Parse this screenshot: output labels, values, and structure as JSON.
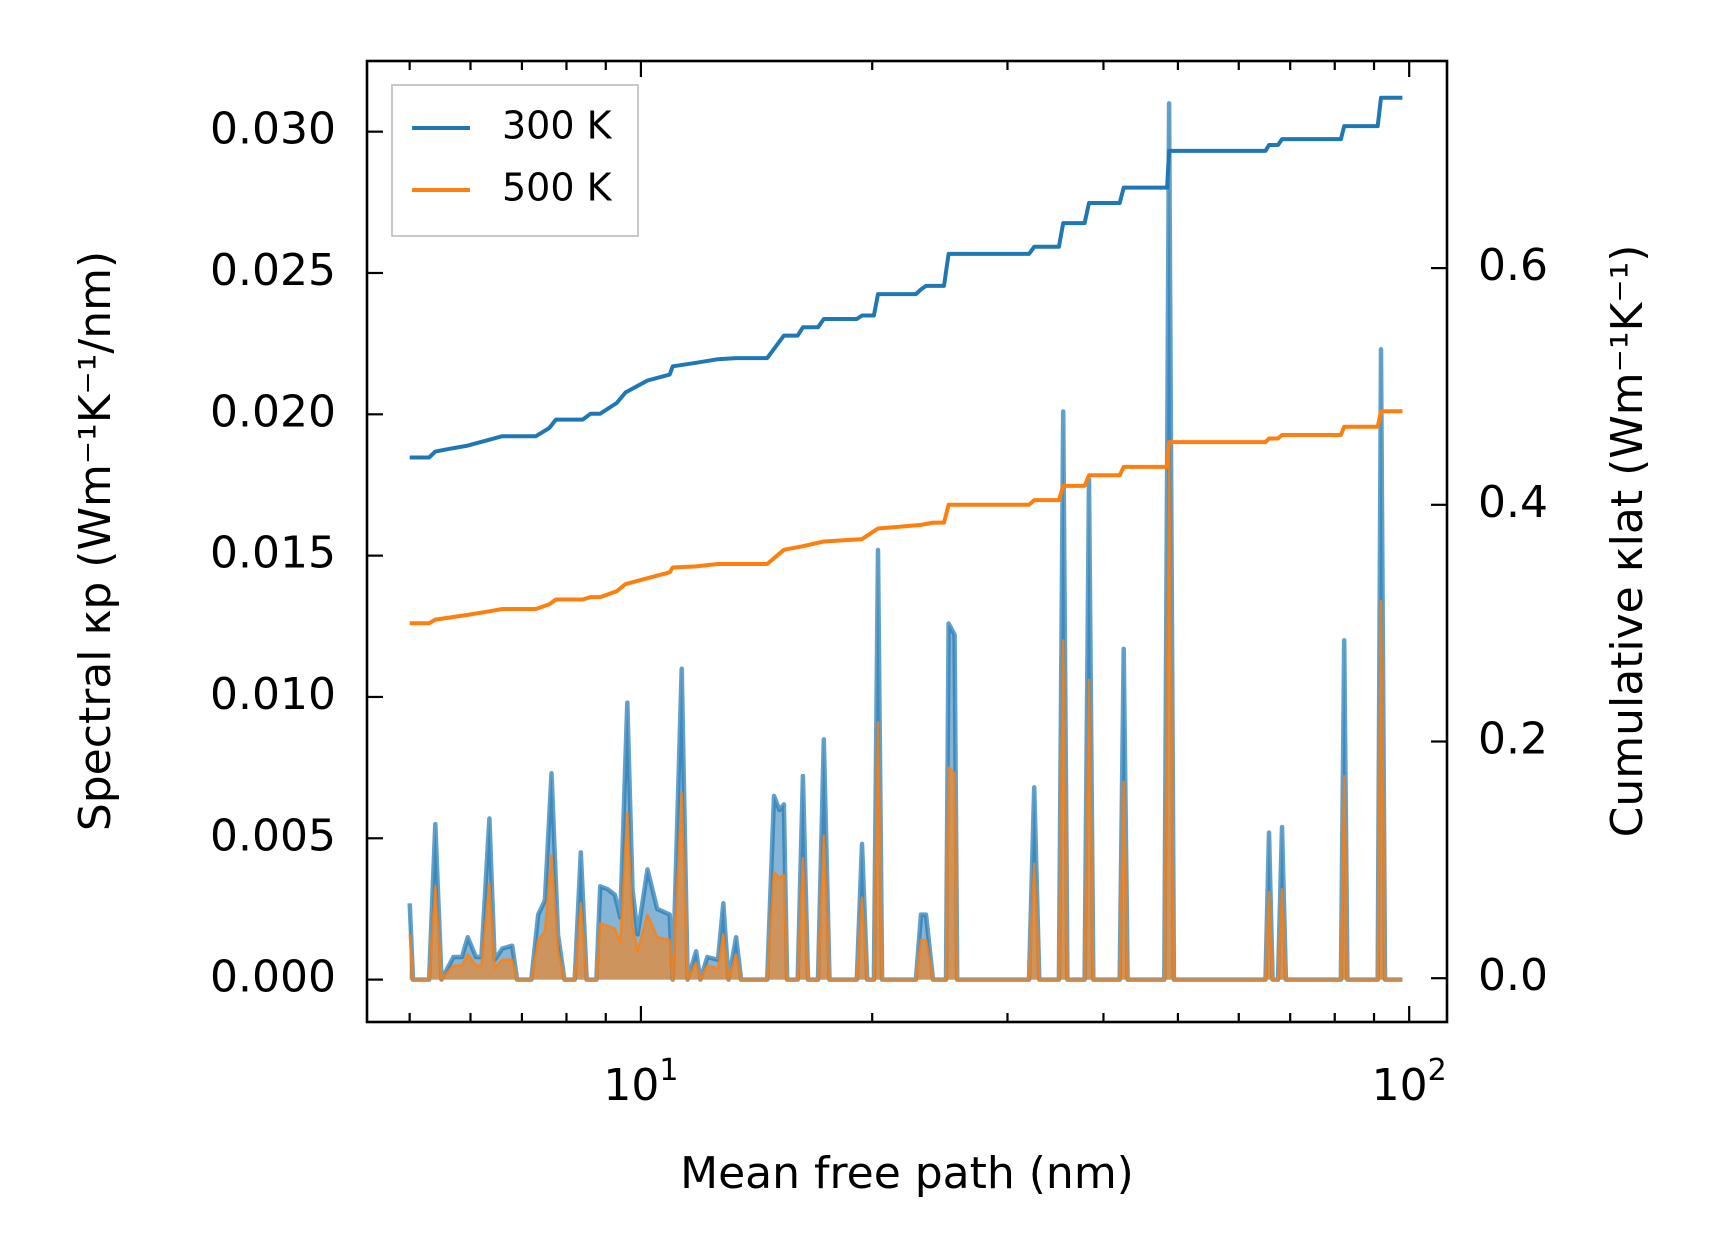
{
  "chart_data": {
    "type": "line",
    "xlabel": "Mean free path (nm)",
    "ylabel_left": "Spectral κp (Wm⁻¹K⁻¹/nm)",
    "ylabel_right": "Cumulative κlat (Wm⁻¹K⁻¹)",
    "x_scale": "log",
    "xlim": [
      4.4,
      112
    ],
    "ylim_left": [
      -0.0015,
      0.0325
    ],
    "ylim_right": [
      -0.037,
      0.775
    ],
    "x_ticks": [
      {
        "value": 10,
        "label": "10¹"
      },
      {
        "value": 100,
        "label": "10²"
      }
    ],
    "y_left_ticks": [
      {
        "value": 0.0,
        "label": "0.000"
      },
      {
        "value": 0.005,
        "label": "0.005"
      },
      {
        "value": 0.01,
        "label": "0.010"
      },
      {
        "value": 0.015,
        "label": "0.015"
      },
      {
        "value": 0.02,
        "label": "0.020"
      },
      {
        "value": 0.025,
        "label": "0.025"
      },
      {
        "value": 0.03,
        "label": "0.030"
      }
    ],
    "y_right_ticks": [
      {
        "value": 0.0,
        "label": "0.0"
      },
      {
        "value": 0.2,
        "label": "0.2"
      },
      {
        "value": 0.4,
        "label": "0.4"
      },
      {
        "value": 0.6,
        "label": "0.6"
      }
    ],
    "legend": {
      "position": "upper-left",
      "entries": [
        {
          "label": "300 K",
          "color": "#1f77b4"
        },
        {
          "label": "500 K",
          "color": "#ff7f0e"
        }
      ]
    },
    "spectral_300K": [
      [
        5.0,
        0.0027
      ],
      [
        5.05,
        0
      ],
      [
        5.3,
        0
      ],
      [
        5.4,
        0.0055
      ],
      [
        5.5,
        0
      ],
      [
        5.7,
        0.0008
      ],
      [
        5.85,
        0.0008
      ],
      [
        5.95,
        0.0015
      ],
      [
        6.1,
        0.0008
      ],
      [
        6.2,
        0.0008
      ],
      [
        6.35,
        0.0057
      ],
      [
        6.45,
        0.0007
      ],
      [
        6.6,
        0.0011
      ],
      [
        6.8,
        0.0012
      ],
      [
        6.9,
        0
      ],
      [
        7.2,
        0
      ],
      [
        7.35,
        0.0023
      ],
      [
        7.5,
        0.0028
      ],
      [
        7.65,
        0.0073
      ],
      [
        7.8,
        0.0016
      ],
      [
        7.95,
        0
      ],
      [
        8.2,
        0
      ],
      [
        8.35,
        0.0045
      ],
      [
        8.5,
        0
      ],
      [
        8.75,
        0
      ],
      [
        8.85,
        0.0033
      ],
      [
        9.05,
        0.0032
      ],
      [
        9.25,
        0.003
      ],
      [
        9.4,
        0.0022
      ],
      [
        9.6,
        0.0098
      ],
      [
        9.75,
        0.0032
      ],
      [
        9.9,
        0.0016
      ],
      [
        10.2,
        0.0039
      ],
      [
        10.5,
        0.0025
      ],
      [
        10.9,
        0.0023
      ],
      [
        11.0,
        0
      ],
      [
        11.3,
        0.011
      ],
      [
        11.5,
        0
      ],
      [
        11.8,
        0.001
      ],
      [
        11.95,
        0
      ],
      [
        12.2,
        0.0008
      ],
      [
        12.6,
        0.0007
      ],
      [
        12.8,
        0.0027
      ],
      [
        13.0,
        0
      ],
      [
        13.3,
        0.0015
      ],
      [
        13.5,
        0
      ],
      [
        14.0,
        0
      ],
      [
        14.6,
        0
      ],
      [
        14.9,
        0.0065
      ],
      [
        15.15,
        0.006
      ],
      [
        15.35,
        0.0062
      ],
      [
        15.5,
        0
      ],
      [
        16.0,
        0
      ],
      [
        16.25,
        0.0072
      ],
      [
        16.5,
        0
      ],
      [
        17.0,
        0
      ],
      [
        17.3,
        0.0085
      ],
      [
        17.6,
        0
      ],
      [
        19.1,
        0
      ],
      [
        19.4,
        0.0048
      ],
      [
        19.7,
        0
      ],
      [
        20.1,
        0
      ],
      [
        20.35,
        0.0152
      ],
      [
        20.6,
        0
      ],
      [
        22.8,
        0
      ],
      [
        23.15,
        0.0023
      ],
      [
        23.5,
        0.0023
      ],
      [
        24.0,
        0
      ],
      [
        24.95,
        0
      ],
      [
        25.15,
        0.0126
      ],
      [
        25.6,
        0.0122
      ],
      [
        25.8,
        0
      ],
      [
        32.0,
        0
      ],
      [
        32.5,
        0.0068
      ],
      [
        33.0,
        0
      ],
      [
        35.0,
        0
      ],
      [
        35.45,
        0.0201
      ],
      [
        35.9,
        0
      ],
      [
        37.8,
        0
      ],
      [
        38.3,
        0.0177
      ],
      [
        38.8,
        0
      ],
      [
        42.0,
        0
      ],
      [
        42.5,
        0.0117
      ],
      [
        43.0,
        0
      ],
      [
        48.0,
        0
      ],
      [
        48.7,
        0.031
      ],
      [
        49.4,
        0
      ],
      [
        65.0,
        0
      ],
      [
        65.7,
        0.0052
      ],
      [
        66.4,
        0
      ],
      [
        67.5,
        0
      ],
      [
        68.3,
        0.0054
      ],
      [
        69.1,
        0
      ],
      [
        81.5,
        0
      ],
      [
        82.3,
        0.012
      ],
      [
        83.1,
        0
      ],
      [
        91.0,
        0
      ],
      [
        91.9,
        0.0223
      ],
      [
        93.0,
        0
      ],
      [
        98.0,
        0
      ]
    ],
    "spectral_500K": [
      [
        5.0,
        0.0016
      ],
      [
        5.05,
        0
      ],
      [
        5.3,
        0
      ],
      [
        5.4,
        0.0033
      ],
      [
        5.5,
        0
      ],
      [
        5.7,
        0.0005
      ],
      [
        5.85,
        0.0005
      ],
      [
        5.95,
        0.0009
      ],
      [
        6.1,
        0.0005
      ],
      [
        6.2,
        0.0005
      ],
      [
        6.35,
        0.0034
      ],
      [
        6.45,
        0.0004
      ],
      [
        6.6,
        0.0007
      ],
      [
        6.8,
        0.0007
      ],
      [
        6.9,
        0
      ],
      [
        7.2,
        0
      ],
      [
        7.35,
        0.0014
      ],
      [
        7.5,
        0.0017
      ],
      [
        7.65,
        0.0044
      ],
      [
        7.8,
        0.001
      ],
      [
        7.95,
        0
      ],
      [
        8.2,
        0
      ],
      [
        8.35,
        0.0027
      ],
      [
        8.5,
        0
      ],
      [
        8.75,
        0
      ],
      [
        8.85,
        0.002
      ],
      [
        9.05,
        0.0019
      ],
      [
        9.25,
        0.0018
      ],
      [
        9.4,
        0.0013
      ],
      [
        9.6,
        0.0059
      ],
      [
        9.75,
        0.0019
      ],
      [
        9.9,
        0.001
      ],
      [
        10.2,
        0.0023
      ],
      [
        10.5,
        0.0015
      ],
      [
        10.9,
        0.0014
      ],
      [
        11.0,
        0
      ],
      [
        11.3,
        0.0066
      ],
      [
        11.5,
        0
      ],
      [
        11.8,
        0.0006
      ],
      [
        11.95,
        0
      ],
      [
        12.2,
        0.0005
      ],
      [
        12.6,
        0.0004
      ],
      [
        12.8,
        0.0016
      ],
      [
        13.0,
        0
      ],
      [
        13.3,
        0.0009
      ],
      [
        13.5,
        0
      ],
      [
        14.0,
        0
      ],
      [
        14.6,
        0
      ],
      [
        14.9,
        0.0038
      ],
      [
        15.15,
        0.0036
      ],
      [
        15.35,
        0.0037
      ],
      [
        15.5,
        0
      ],
      [
        16.0,
        0
      ],
      [
        16.25,
        0.0043
      ],
      [
        16.5,
        0
      ],
      [
        17.0,
        0
      ],
      [
        17.3,
        0.0051
      ],
      [
        17.6,
        0
      ],
      [
        19.1,
        0
      ],
      [
        19.4,
        0.0029
      ],
      [
        19.7,
        0
      ],
      [
        20.1,
        0
      ],
      [
        20.35,
        0.0091
      ],
      [
        20.6,
        0
      ],
      [
        22.8,
        0
      ],
      [
        23.15,
        0.0014
      ],
      [
        23.5,
        0.0014
      ],
      [
        24.0,
        0
      ],
      [
        24.95,
        0
      ],
      [
        25.15,
        0.0075
      ],
      [
        25.6,
        0.0073
      ],
      [
        25.8,
        0
      ],
      [
        32.0,
        0
      ],
      [
        32.5,
        0.0041
      ],
      [
        33.0,
        0
      ],
      [
        35.0,
        0
      ],
      [
        35.45,
        0.012
      ],
      [
        35.9,
        0
      ],
      [
        37.8,
        0
      ],
      [
        38.3,
        0.0106
      ],
      [
        38.8,
        0
      ],
      [
        42.0,
        0
      ],
      [
        42.5,
        0.007
      ],
      [
        43.0,
        0
      ],
      [
        48.0,
        0
      ],
      [
        48.7,
        0.0186
      ],
      [
        49.4,
        0
      ],
      [
        65.0,
        0
      ],
      [
        65.7,
        0.0031
      ],
      [
        66.4,
        0
      ],
      [
        67.5,
        0
      ],
      [
        68.3,
        0.0032
      ],
      [
        69.1,
        0
      ],
      [
        81.5,
        0
      ],
      [
        82.3,
        0.0072
      ],
      [
        83.1,
        0
      ],
      [
        91.0,
        0
      ],
      [
        91.9,
        0.0134
      ],
      [
        93.0,
        0
      ],
      [
        98.0,
        0
      ]
    ],
    "cumulative_300K": [
      [
        5.0,
        0.44
      ],
      [
        5.3,
        0.44
      ],
      [
        5.4,
        0.445
      ],
      [
        5.6,
        0.447
      ],
      [
        5.95,
        0.45
      ],
      [
        6.35,
        0.455
      ],
      [
        6.6,
        0.458
      ],
      [
        7.3,
        0.458
      ],
      [
        7.6,
        0.465
      ],
      [
        7.75,
        0.472
      ],
      [
        8.4,
        0.472
      ],
      [
        8.6,
        0.477
      ],
      [
        8.85,
        0.477
      ],
      [
        9.3,
        0.486
      ],
      [
        9.55,
        0.495
      ],
      [
        10.2,
        0.505
      ],
      [
        10.9,
        0.51
      ],
      [
        11.0,
        0.517
      ],
      [
        11.8,
        0.52
      ],
      [
        12.6,
        0.523
      ],
      [
        13.3,
        0.524
      ],
      [
        14.6,
        0.524
      ],
      [
        15.35,
        0.543
      ],
      [
        16.0,
        0.543
      ],
      [
        16.25,
        0.55
      ],
      [
        17.0,
        0.55
      ],
      [
        17.3,
        0.557
      ],
      [
        19.1,
        0.557
      ],
      [
        19.4,
        0.56
      ],
      [
        20.1,
        0.56
      ],
      [
        20.35,
        0.578
      ],
      [
        22.8,
        0.578
      ],
      [
        23.15,
        0.582
      ],
      [
        23.5,
        0.585
      ],
      [
        24.8,
        0.585
      ],
      [
        25.15,
        0.612
      ],
      [
        32.0,
        0.612
      ],
      [
        32.5,
        0.618
      ],
      [
        35.0,
        0.618
      ],
      [
        35.45,
        0.638
      ],
      [
        37.8,
        0.638
      ],
      [
        38.3,
        0.655
      ],
      [
        42.0,
        0.655
      ],
      [
        42.5,
        0.668
      ],
      [
        48.4,
        0.668
      ],
      [
        48.7,
        0.699
      ],
      [
        65.0,
        0.699
      ],
      [
        65.7,
        0.704
      ],
      [
        67.5,
        0.704
      ],
      [
        68.3,
        0.709
      ],
      [
        81.5,
        0.709
      ],
      [
        82.3,
        0.72
      ],
      [
        91.0,
        0.72
      ],
      [
        91.9,
        0.744
      ],
      [
        98.0,
        0.744
      ]
    ],
    "cumulative_500K": [
      [
        5.0,
        0.3
      ],
      [
        5.3,
        0.3
      ],
      [
        5.4,
        0.303
      ],
      [
        5.95,
        0.307
      ],
      [
        6.35,
        0.31
      ],
      [
        6.6,
        0.312
      ],
      [
        7.3,
        0.312
      ],
      [
        7.6,
        0.316
      ],
      [
        7.75,
        0.32
      ],
      [
        8.4,
        0.32
      ],
      [
        8.6,
        0.322
      ],
      [
        8.85,
        0.322
      ],
      [
        9.3,
        0.327
      ],
      [
        9.55,
        0.333
      ],
      [
        10.2,
        0.338
      ],
      [
        10.9,
        0.343
      ],
      [
        11.0,
        0.347
      ],
      [
        11.8,
        0.348
      ],
      [
        12.6,
        0.35
      ],
      [
        13.3,
        0.35
      ],
      [
        14.6,
        0.35
      ],
      [
        15.35,
        0.362
      ],
      [
        16.25,
        0.365
      ],
      [
        17.3,
        0.369
      ],
      [
        19.4,
        0.371
      ],
      [
        20.35,
        0.38
      ],
      [
        23.15,
        0.383
      ],
      [
        24.0,
        0.385
      ],
      [
        24.8,
        0.385
      ],
      [
        25.15,
        0.4
      ],
      [
        32.0,
        0.4
      ],
      [
        32.5,
        0.404
      ],
      [
        35.0,
        0.404
      ],
      [
        35.45,
        0.416
      ],
      [
        37.8,
        0.416
      ],
      [
        38.3,
        0.425
      ],
      [
        42.0,
        0.425
      ],
      [
        42.5,
        0.432
      ],
      [
        48.4,
        0.432
      ],
      [
        48.7,
        0.453
      ],
      [
        65.0,
        0.453
      ],
      [
        65.7,
        0.456
      ],
      [
        67.5,
        0.456
      ],
      [
        68.3,
        0.459
      ],
      [
        81.5,
        0.459
      ],
      [
        82.3,
        0.466
      ],
      [
        91.0,
        0.466
      ],
      [
        91.9,
        0.479
      ],
      [
        98.0,
        0.479
      ]
    ]
  }
}
